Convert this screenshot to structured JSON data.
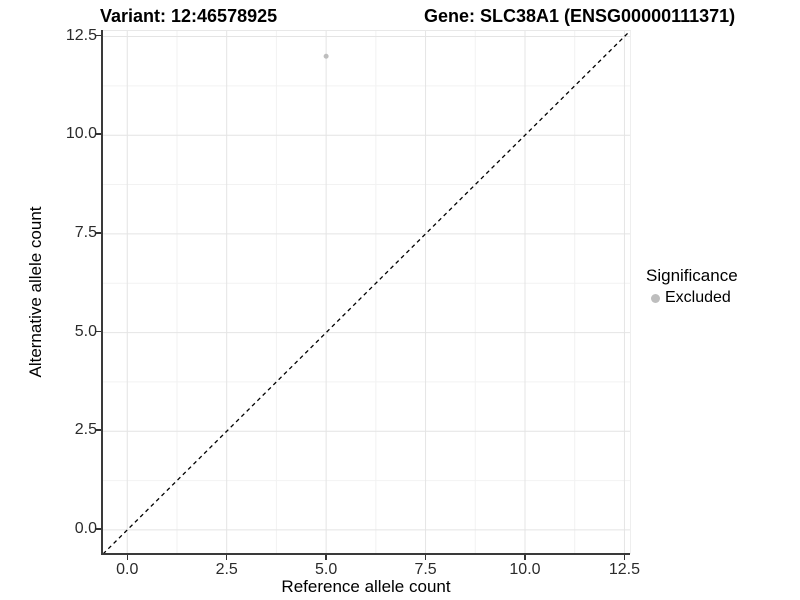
{
  "titles": {
    "variant": "Variant: 12:46578925",
    "gene": "Gene: SLC38A1 (ENSG00000111371)"
  },
  "chart_data": {
    "type": "scatter",
    "title_left": "Variant: 12:46578925",
    "title_right": "Gene: SLC38A1 (ENSG00000111371)",
    "xlabel": "Reference allele count",
    "ylabel": "Alternative allele count",
    "points": [
      {
        "x": 5,
        "y": 12,
        "series": "Excluded"
      }
    ],
    "point_color": "#bebebe",
    "point_radius": 2.5,
    "axis_range": [
      -0.61,
      12.64
    ],
    "xticks": [
      "0.0",
      "2.5",
      "5.0",
      "7.5",
      "10.0",
      "12.5"
    ],
    "yticks": [
      "0.0",
      "2.5",
      "5.0",
      "7.5",
      "10.0",
      "12.5"
    ],
    "minor_ticks": [
      1.25,
      3.75,
      6.25,
      8.75,
      11.25
    ],
    "grid": true,
    "grid_major_color": "#e4e4e4",
    "grid_minor_color": "#f2f2f2",
    "reference_line": {
      "type": "identity",
      "slope": 1,
      "intercept": 0,
      "style": "dashed",
      "color": "#000000"
    },
    "legend_position": "right"
  },
  "legend": {
    "title": "Significance",
    "items": [
      {
        "label": "Excluded",
        "color": "#bebebe"
      }
    ]
  }
}
